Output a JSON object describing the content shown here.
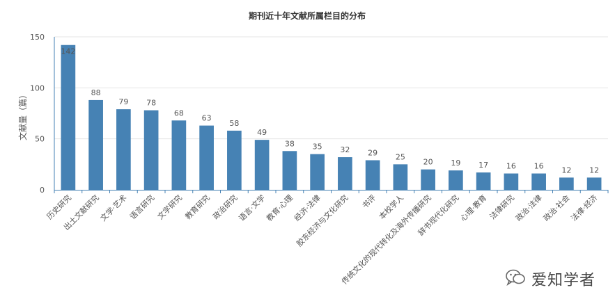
{
  "chart_data": {
    "type": "bar",
    "title": "期刊近十年文献所属栏目的分布",
    "xlabel": "",
    "ylabel": "文献量（篇）",
    "ylim": [
      0,
      150
    ],
    "yticks": [
      0,
      50,
      100,
      150
    ],
    "grid": true,
    "legend": "none",
    "categories": [
      "历史研究",
      "出土文献研究",
      "文学·艺术",
      "语言研究",
      "文学研究",
      "教育研究",
      "政治研究",
      "语言·文学",
      "教育·心理",
      "经济·法律",
      "胶东经济与文化研究",
      "书评",
      "本校学人",
      "传统文化的现代转化及海外传播研究",
      "辞书现代化研究",
      "心理·教育",
      "法律研究",
      "政治·法律",
      "政治·社会",
      "法律·经济"
    ],
    "values": [
      142,
      88,
      79,
      78,
      68,
      63,
      58,
      49,
      38,
      35,
      32,
      29,
      25,
      20,
      19,
      17,
      16,
      16,
      12,
      12
    ],
    "data_labels": [
      "142",
      "88",
      "79",
      "78",
      "68",
      "63",
      "58",
      "49",
      "38",
      "35",
      "32",
      "29",
      "25",
      "20",
      "19",
      "17",
      "16",
      "16",
      "12",
      "12"
    ],
    "colors": {
      "bar": "#4682b4",
      "axis": "#4682b4",
      "grid": "#e6e6e6",
      "label": "#555555",
      "title": "#333333"
    }
  },
  "watermark": {
    "text": "爱知学者",
    "icon": "wechat-icon"
  }
}
